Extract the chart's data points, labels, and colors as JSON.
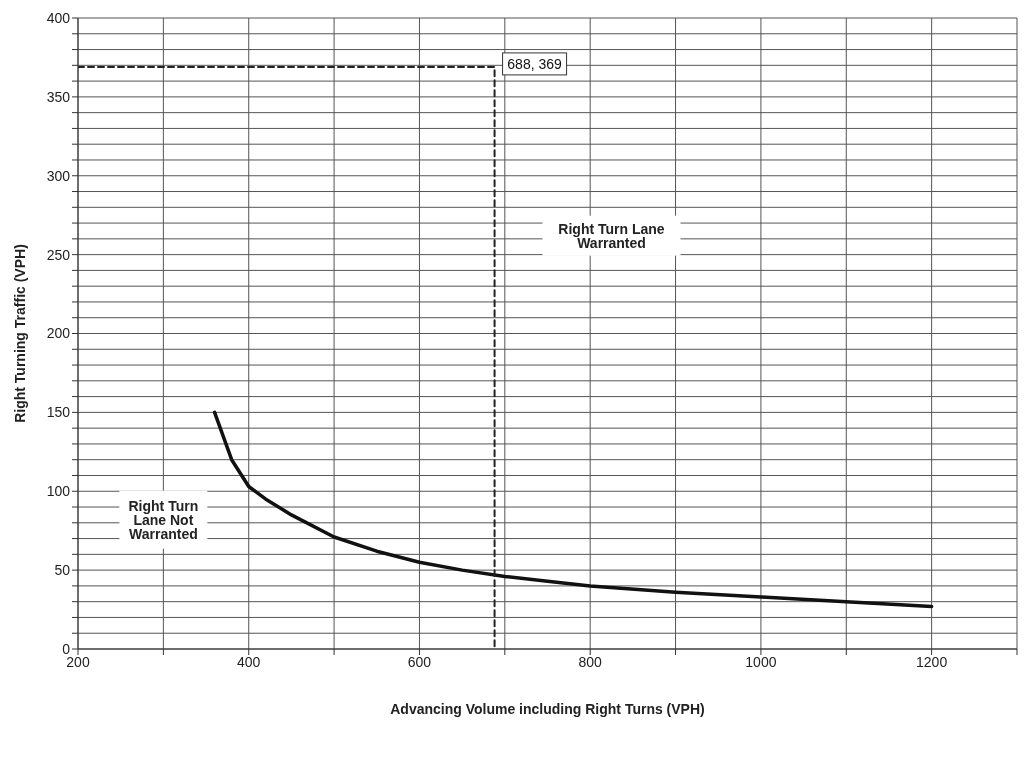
{
  "chart_data": {
    "type": "line",
    "xlabel": "Advancing Volume including Right Turns (VPH)",
    "ylabel": "Right Turning Traffic (VPH)",
    "xlim": [
      200,
      1300
    ],
    "xticks": [
      200,
      {
        "value": 300,
        "label": null
      },
      400,
      {
        "value": 500,
        "label": null
      },
      600,
      {
        "value": 700,
        "label": null
      },
      800,
      {
        "value": 900,
        "label": null
      },
      1000,
      {
        "value": 1100,
        "label": null
      },
      1200,
      {
        "value": 1300,
        "label": null
      }
    ],
    "ylim": [
      0,
      400
    ],
    "yticks": [
      0,
      {
        "value": 10,
        "label": null
      },
      {
        "value": 20,
        "label": null
      },
      {
        "value": 30,
        "label": null
      },
      {
        "value": 40,
        "label": null
      },
      50,
      {
        "value": 60,
        "label": null
      },
      {
        "value": 70,
        "label": null
      },
      {
        "value": 80,
        "label": null
      },
      {
        "value": 90,
        "label": null
      },
      100,
      {
        "value": 110,
        "label": null
      },
      {
        "value": 120,
        "label": null
      },
      {
        "value": 130,
        "label": null
      },
      {
        "value": 140,
        "label": null
      },
      150,
      {
        "value": 160,
        "label": null
      },
      {
        "value": 170,
        "label": null
      },
      {
        "value": 180,
        "label": null
      },
      {
        "value": 190,
        "label": null
      },
      200,
      {
        "value": 210,
        "label": null
      },
      {
        "value": 220,
        "label": null
      },
      {
        "value": 230,
        "label": null
      },
      {
        "value": 240,
        "label": null
      },
      250,
      {
        "value": 260,
        "label": null
      },
      {
        "value": 270,
        "label": null
      },
      {
        "value": 280,
        "label": null
      },
      {
        "value": 290,
        "label": null
      },
      300,
      {
        "value": 310,
        "label": null
      },
      {
        "value": 320,
        "label": null
      },
      {
        "value": 330,
        "label": null
      },
      {
        "value": 340,
        "label": null
      },
      350,
      {
        "value": 360,
        "label": null
      },
      {
        "value": 370,
        "label": null
      },
      {
        "value": 380,
        "label": null
      },
      {
        "value": 390,
        "label": null
      },
      400
    ],
    "grid": true,
    "marker": "none",
    "series": [
      {
        "color": "#111111",
        "line_style": "solid",
        "x": [
          360,
          380,
          400,
          420,
          450,
          500,
          550,
          600,
          650,
          700,
          750,
          800,
          900,
          1000,
          1100,
          1200
        ],
        "values": [
          150,
          120,
          103,
          95,
          85,
          71,
          62,
          55,
          50,
          46,
          43,
          40,
          36,
          33,
          30,
          27
        ]
      },
      {
        "color": "#222222",
        "line_style": "dashed",
        "x": [
          200,
          688,
          688
        ],
        "values": [
          369,
          369,
          0
        ]
      }
    ],
    "annotations": [
      {
        "text": "688, 369",
        "x": 688,
        "y": 369
      },
      "Right Turn Lane Warranted",
      "Right Turn Lane Not Warranted"
    ]
  }
}
